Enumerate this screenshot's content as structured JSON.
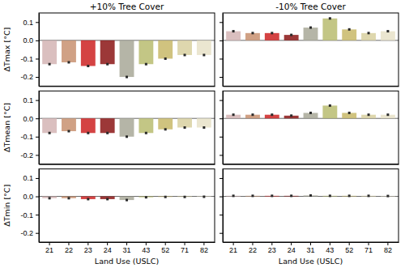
{
  "chart_data": [
    {
      "type": "bar",
      "title": "+10% Tree Cover",
      "ylabel": "ΔTmax [°C]",
      "categories": [
        "21",
        "22",
        "23",
        "24",
        "31",
        "43",
        "52",
        "71",
        "82"
      ],
      "values": [
        -0.13,
        -0.12,
        -0.14,
        -0.13,
        -0.2,
        -0.13,
        -0.1,
        -0.08,
        -0.08
      ],
      "colors": [
        "#d4b4b4",
        "#c89070",
        "#cc2222",
        "#8b1515",
        "#a8a898",
        "#b8bc70",
        "#c8b868",
        "#d8d0a0",
        "#e8e2c8"
      ],
      "marker": "square",
      "ylim": [
        -0.25,
        0.15
      ],
      "yticks": [
        -0.2,
        -0.1,
        {
          "value": 0,
          "label": "0.0"
        },
        0.1
      ],
      "tick_labels": "y"
    },
    {
      "type": "bar",
      "title": "-10% Tree Cover",
      "categories": [
        "21",
        "22",
        "23",
        "24",
        "31",
        "43",
        "52",
        "71",
        "82"
      ],
      "values": [
        0.05,
        0.04,
        0.04,
        0.03,
        0.07,
        0.12,
        0.06,
        0.04,
        0.05
      ],
      "colors": [
        "#d4b4b4",
        "#c89070",
        "#cc2222",
        "#8b1515",
        "#a8a898",
        "#b8bc70",
        "#c8b868",
        "#d8d0a0",
        "#e8e2c8"
      ],
      "marker": "square",
      "ylim": [
        -0.25,
        0.15
      ],
      "yticks": [
        -0.2,
        -0.1,
        {
          "value": 0,
          "label": "0.0"
        },
        0.1
      ],
      "tick_labels": false
    },
    {
      "type": "bar",
      "ylabel": "ΔTmean [°C]",
      "categories": [
        "21",
        "22",
        "23",
        "24",
        "31",
        "43",
        "52",
        "71",
        "82"
      ],
      "values": [
        -0.08,
        -0.07,
        -0.08,
        -0.08,
        -0.1,
        -0.08,
        -0.06,
        -0.05,
        -0.05
      ],
      "colors": [
        "#d4b4b4",
        "#c89070",
        "#cc2222",
        "#8b1515",
        "#a8a898",
        "#b8bc70",
        "#c8b868",
        "#d8d0a0",
        "#e8e2c8"
      ],
      "marker": "square",
      "ylim": [
        -0.25,
        0.15
      ],
      "yticks": [
        -0.2,
        -0.1,
        {
          "value": 0,
          "label": "0.0"
        },
        0.1
      ],
      "tick_labels": "y"
    },
    {
      "type": "bar",
      "categories": [
        "21",
        "22",
        "23",
        "24",
        "31",
        "43",
        "52",
        "71",
        "82"
      ],
      "values": [
        0.02,
        0.02,
        0.02,
        0.015,
        0.03,
        0.07,
        0.03,
        0.02,
        0.02
      ],
      "colors": [
        "#d4b4b4",
        "#c89070",
        "#cc2222",
        "#8b1515",
        "#a8a898",
        "#b8bc70",
        "#c8b868",
        "#d8d0a0",
        "#e8e2c8"
      ],
      "marker": "square",
      "ylim": [
        -0.25,
        0.15
      ],
      "yticks": [
        -0.2,
        -0.1,
        {
          "value": 0,
          "label": "0.0"
        },
        0.1
      ],
      "tick_labels": false
    },
    {
      "type": "bar",
      "ylabel": "ΔTmin [°C]",
      "xlabel": "Land Use (USLC)",
      "categories": [
        "21",
        "22",
        "23",
        "24",
        "31",
        "43",
        "52",
        "71",
        "82"
      ],
      "values": [
        -0.01,
        -0.01,
        -0.015,
        -0.015,
        -0.02,
        -0.005,
        -0.003,
        -0.003,
        -0.002
      ],
      "colors": [
        "#d4b4b4",
        "#c89070",
        "#cc2222",
        "#8b1515",
        "#a8a898",
        "#b8bc70",
        "#c8b868",
        "#d8d0a0",
        "#e8e2c8"
      ],
      "marker": "square",
      "ylim": [
        -0.25,
        0.15
      ],
      "yticks": [
        -0.2,
        -0.1,
        {
          "value": 0,
          "label": "0.0"
        },
        0.1
      ]
    },
    {
      "type": "bar",
      "xlabel": "Land Use (USLC)",
      "categories": [
        "21",
        "22",
        "23",
        "24",
        "31",
        "43",
        "52",
        "71",
        "82"
      ],
      "values": [
        0.003,
        0.003,
        0.003,
        0.003,
        0.005,
        0.003,
        0.003,
        0.003,
        0.002
      ],
      "colors": [
        "#d4b4b4",
        "#c89070",
        "#cc2222",
        "#8b1515",
        "#a8a898",
        "#b8bc70",
        "#c8b868",
        "#d8d0a0",
        "#e8e2c8"
      ],
      "marker": "square",
      "ylim": [
        -0.25,
        0.15
      ],
      "yticks": [
        -0.2,
        -0.1,
        {
          "value": 0,
          "label": "0.0"
        },
        0.1
      ],
      "tick_labels": "x"
    }
  ]
}
